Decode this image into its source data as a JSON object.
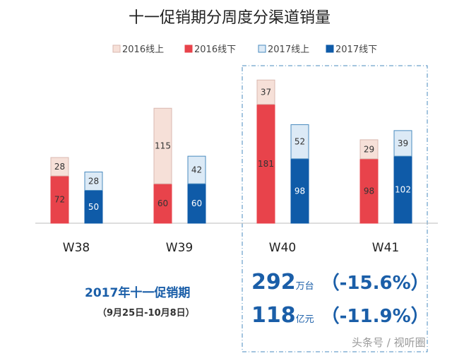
{
  "chart_data": {
    "type": "bar",
    "title": "十一促销期分周度分渠道销量",
    "categories": [
      "W38",
      "W39",
      "W40",
      "W41"
    ],
    "series": [
      {
        "name": "2016线上",
        "group": "2016",
        "values": [
          28,
          115,
          37,
          29
        ]
      },
      {
        "name": "2016线下",
        "group": "2016",
        "values": [
          72,
          60,
          181,
          98
        ]
      },
      {
        "name": "2017线上",
        "group": "2017",
        "values": [
          28,
          42,
          52,
          39
        ]
      },
      {
        "name": "2017线下",
        "group": "2017",
        "values": [
          50,
          60,
          98,
          102
        ]
      }
    ],
    "stacked": true,
    "legend_position": "top",
    "colors": {
      "2016线上": "#f6e0d8",
      "2016线下": "#e8434b",
      "2017线上": "#dceaf6",
      "2017线下": "#0f5ba8"
    }
  },
  "summary": {
    "title": "2017年十一促销期",
    "period": "（9月25日-10月8日）",
    "volume": "292",
    "volume_unit": "万台",
    "volume_change": "（-15.6%）",
    "revenue": "118",
    "revenue_unit": "亿元",
    "revenue_change": "（-11.9%）"
  },
  "watermark": "头条号 / 视听圈"
}
